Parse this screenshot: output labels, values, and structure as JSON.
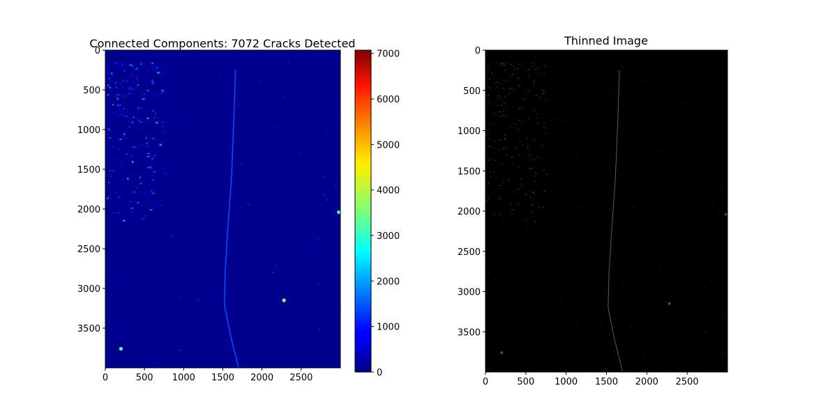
{
  "chart_data": [
    {
      "type": "heatmap",
      "title": "Connected Components: 7072 Cracks Detected",
      "xlabel": "",
      "ylabel": "",
      "xlim": [
        0,
        3000
      ],
      "ylim": [
        4000,
        0
      ],
      "x_ticks": [
        "0",
        "500",
        "1000",
        "1500",
        "2000",
        "2500"
      ],
      "y_ticks": [
        "0",
        "500",
        "1000",
        "1500",
        "2000",
        "2500",
        "3000",
        "3500"
      ],
      "colormap": "jet",
      "background_color": "#00008f",
      "colorbar": {
        "range": [
          0,
          7072
        ],
        "ticks": [
          "0",
          "1000",
          "2000",
          "3000",
          "4000",
          "5000",
          "6000",
          "7000"
        ]
      },
      "features": [
        {
          "label": "main crack",
          "points": [
            [
              1660,
              250
            ],
            [
              1640,
              900
            ],
            [
              1610,
              1600
            ],
            [
              1560,
              2300
            ],
            [
              1530,
              2800
            ],
            [
              1520,
              3200
            ],
            [
              1600,
              3600
            ],
            [
              1700,
              3990
            ]
          ],
          "value": 1400
        },
        {
          "label": "upper-left crack field",
          "region": [
            0,
            150,
            750,
            2150
          ],
          "value": 900
        },
        {
          "label": "bright component",
          "point": [
            2280,
            3150
          ],
          "value": 3600
        },
        {
          "label": "bright component",
          "point": [
            200,
            3760
          ],
          "value": 3400
        },
        {
          "label": "bright component",
          "point": [
            2980,
            2040
          ],
          "value": 3300
        }
      ]
    },
    {
      "type": "heatmap",
      "title": "Thinned Image",
      "xlabel": "",
      "ylabel": "",
      "xlim": [
        0,
        3000
      ],
      "ylim": [
        4000,
        0
      ],
      "x_ticks": [
        "0",
        "500",
        "1000",
        "1500",
        "2000",
        "2500"
      ],
      "y_ticks": [
        "0",
        "500",
        "1000",
        "1500",
        "2000",
        "2500",
        "3000",
        "3500"
      ],
      "colormap": "gray",
      "background_color": "#000000"
    }
  ]
}
